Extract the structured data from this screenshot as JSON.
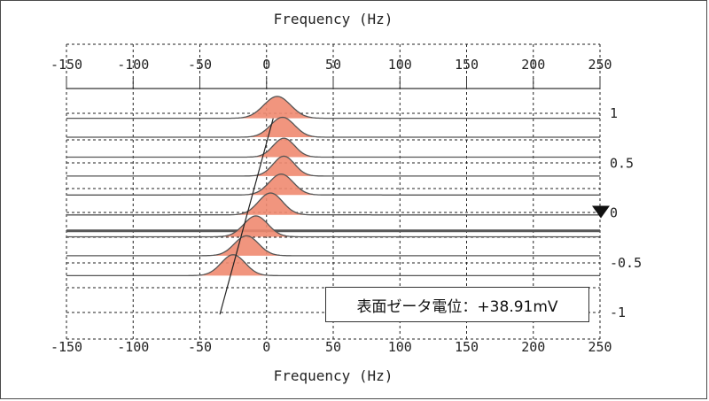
{
  "chart_data": {
    "type": "line",
    "title": "",
    "xlabel_top": "Frequency (Hz)",
    "xlabel_bottom": "Frequency (Hz)",
    "xlim": [
      -150,
      250
    ],
    "x_ticks": [
      "-150",
      "-100",
      "-50",
      "0",
      "50",
      "100",
      "150",
      "200",
      "250"
    ],
    "y_right_ticks": [
      "1",
      "0.5",
      "0",
      "-0.5",
      "-1"
    ],
    "ylim": [
      -1,
      1
    ],
    "grid": true,
    "peak_color": "#f08a70",
    "line_color": "#555555",
    "marker": {
      "type": "down-triangle",
      "at_y": "0"
    },
    "series": [
      {
        "baseline": 0.95,
        "peak_x": 8,
        "height": 0.22,
        "width": 10
      },
      {
        "baseline": 0.76,
        "peak_x": 12,
        "height": 0.2,
        "width": 9
      },
      {
        "baseline": 0.56,
        "peak_x": 13,
        "height": 0.19,
        "width": 8
      },
      {
        "baseline": 0.37,
        "peak_x": 13,
        "height": 0.2,
        "width": 8
      },
      {
        "baseline": 0.18,
        "peak_x": 11,
        "height": 0.21,
        "width": 9
      },
      {
        "baseline": -0.02,
        "peak_x": 3,
        "height": 0.22,
        "width": 9
      },
      {
        "baseline": -0.24,
        "peak_x": -8,
        "height": 0.21,
        "width": 9
      },
      {
        "baseline": -0.43,
        "peak_x": -15,
        "height": 0.2,
        "width": 9
      },
      {
        "baseline": -0.63,
        "peak_x": -25,
        "height": 0.21,
        "width": 9
      }
    ],
    "highlight_line": -0.18,
    "trend_line": {
      "from": [
        -35,
        -1.02
      ],
      "to": [
        5,
        0.95
      ]
    }
  },
  "annotation": {
    "text": "表面ゼータ電位：+38.91mV"
  }
}
